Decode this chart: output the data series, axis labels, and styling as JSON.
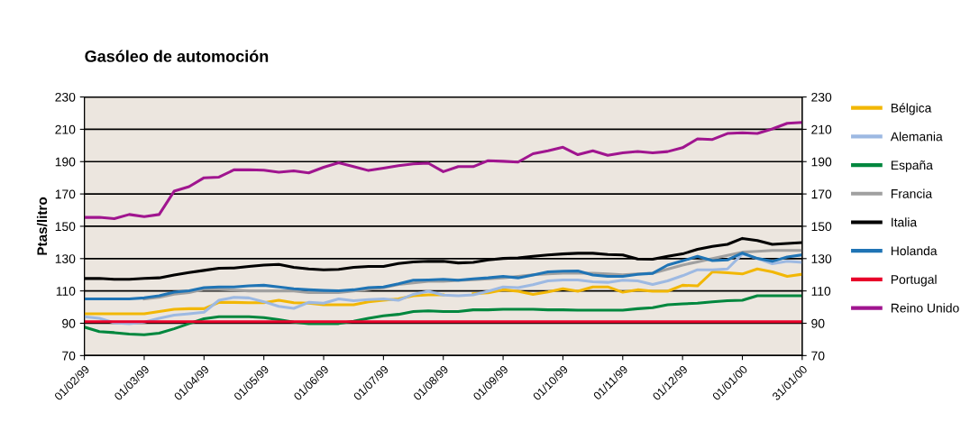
{
  "chart_data": {
    "type": "line",
    "title": "Gasóleo de automoción",
    "ylabel": "Ptas/litro",
    "categories": [
      "01/02/99",
      null,
      null,
      null,
      "01/03/99",
      null,
      null,
      null,
      "01/04/99",
      null,
      null,
      null,
      "01/05/99",
      null,
      null,
      null,
      "01/06/99",
      null,
      null,
      null,
      "01/07/99",
      null,
      null,
      null,
      "01/08/99",
      null,
      null,
      null,
      "01/09/99",
      null,
      null,
      null,
      "01/10/99",
      null,
      null,
      null,
      "01/11/99",
      null,
      null,
      null,
      "01/12/99",
      null,
      null,
      null,
      "01/01/00",
      null,
      null,
      null,
      "31/01/00"
    ],
    "series": [
      {
        "name": "Bélgica",
        "color": "#f2b705",
        "values": [
          95.9,
          95.9,
          95.9,
          95.9,
          95.9,
          97.2,
          98.7,
          99,
          99,
          102.9,
          102.9,
          102.7,
          102.7,
          104.2,
          102.7,
          102.4,
          101.4,
          101.4,
          101.4,
          103.3,
          104.2,
          105.1,
          107,
          107.6,
          107.6,
          null,
          108.3,
          108.8,
          110.7,
          109.8,
          107.9,
          109.4,
          111.3,
          109.8,
          112.5,
          112.5,
          109.2,
          110.7,
          109.8,
          109.8,
          113.5,
          113.1,
          121.8,
          121.2,
          120.5,
          123.6,
          121.8,
          119,
          120.3
        ]
      },
      {
        "name": "Alemania",
        "color": "#9db9e2",
        "values": [
          94,
          93.1,
          90.3,
          89.8,
          90.7,
          93.1,
          95,
          95.9,
          96.8,
          104.2,
          106,
          105.7,
          103.3,
          100.5,
          99.2,
          102.9,
          102.4,
          105.1,
          103.9,
          104.6,
          105.1,
          104.2,
          107.9,
          109.8,
          107.4,
          107,
          107.6,
          109.8,
          112.5,
          112,
          113.8,
          116.2,
          116.8,
          116.8,
          115.7,
          115.3,
          116.6,
          116.2,
          114,
          116.2,
          119.4,
          123.1,
          123.1,
          123.6,
          132.9,
          130.1,
          126.8,
          128.3,
          127.7
        ]
      },
      {
        "name": "España",
        "color": "#00873e",
        "values": [
          87.6,
          84.8,
          84.2,
          83.3,
          82.9,
          83.9,
          86.6,
          89.8,
          92.8,
          94,
          94,
          94,
          93.5,
          92.2,
          90.7,
          89.8,
          89.8,
          89.8,
          91.3,
          93.1,
          94.6,
          95.5,
          97.2,
          97.7,
          97.2,
          97.2,
          98.3,
          98.3,
          98.7,
          98.7,
          98.7,
          98.3,
          98.3,
          98.1,
          98.1,
          98.1,
          98.1,
          99,
          99.6,
          101.4,
          102,
          102.4,
          103.3,
          103.9,
          104.2,
          107,
          107,
          107,
          107
        ]
      },
      {
        "name": "Francia",
        "color": "#a0a0a0",
        "values": [
          null,
          null,
          null,
          null,
          105,
          106,
          108,
          109,
          111,
          111,
          110.5,
          110,
          110,
          110,
          110,
          109,
          109,
          109,
          110,
          111,
          112,
          114,
          115,
          116,
          116,
          116.5,
          117,
          117.5,
          118,
          119,
          120,
          120.5,
          121,
          121,
          121,
          120.5,
          120,
          120.5,
          121,
          123.5,
          126,
          128,
          130,
          132,
          134,
          134.5,
          135,
          135,
          135
        ]
      },
      {
        "name": "Italia",
        "color": "#000000",
        "values": [
          117.7,
          117.7,
          117.2,
          117.2,
          117.7,
          118.1,
          119.9,
          121.4,
          122.7,
          124,
          124.2,
          125.1,
          126,
          126.4,
          124.6,
          123.6,
          123.1,
          123.3,
          124.6,
          125.1,
          125.1,
          127,
          127.9,
          128.3,
          128.3,
          127.3,
          127.7,
          129.2,
          130.1,
          130.5,
          131.4,
          132.3,
          132.9,
          133.3,
          133.3,
          132.5,
          132.3,
          129.7,
          129.6,
          131.4,
          132.9,
          135.7,
          137.5,
          138.8,
          142.5,
          141.2,
          138.8,
          139.4,
          139.9
        ]
      },
      {
        "name": "Holanda",
        "color": "#1f74b5",
        "values": [
          105.1,
          105.1,
          105.1,
          105.1,
          105.7,
          107,
          109.2,
          110.1,
          112,
          112.5,
          112.5,
          113.1,
          113.5,
          112.5,
          111.3,
          110.7,
          110.3,
          110.1,
          110.7,
          112,
          112.5,
          114.4,
          116.6,
          116.8,
          117.2,
          116.6,
          117.5,
          118.1,
          119,
          118.1,
          119.9,
          121.8,
          122.2,
          122.4,
          119.9,
          119,
          119,
          120.3,
          120.9,
          126,
          128.6,
          131.4,
          128.8,
          129.2,
          133.4,
          130.1,
          128.3,
          131,
          132.3
        ]
      },
      {
        "name": "Portugal",
        "color": "#e8002a",
        "values": [
          91,
          91,
          91,
          91,
          91,
          91,
          91,
          91,
          91,
          91,
          91,
          91,
          91,
          91,
          91,
          91,
          91,
          91,
          91,
          91,
          91,
          91,
          91,
          91,
          91,
          91,
          91,
          91,
          91,
          91,
          91,
          91,
          91,
          91,
          91,
          91,
          91,
          91,
          91,
          91,
          91,
          91,
          91,
          91,
          91,
          91,
          91,
          91,
          91
        ]
      },
      {
        "name": "Reino Unido",
        "color": "#a0158f",
        "values": [
          155.5,
          155.6,
          154.7,
          157.3,
          156,
          157.3,
          171.7,
          174.5,
          180,
          180.4,
          184.9,
          185,
          184.7,
          183.4,
          184.3,
          183,
          186.5,
          189.3,
          186.9,
          184.5,
          186,
          187.5,
          188.6,
          189,
          183.8,
          186.9,
          186.9,
          190.6,
          190.2,
          189.7,
          194.9,
          196.7,
          198.9,
          194.3,
          196.7,
          193.9,
          195.4,
          196.3,
          195.4,
          196.2,
          198.6,
          204.1,
          203.7,
          207.4,
          207.8,
          207.4,
          210.2,
          213.7,
          214.3
        ]
      }
    ],
    "ylim": [
      70,
      230
    ],
    "yticks": [
      70,
      90,
      110,
      130,
      150,
      170,
      190,
      210,
      230
    ],
    "y2lim": [
      70,
      230
    ],
    "y2ticks": [
      70,
      90,
      110,
      130,
      150,
      170,
      190,
      210,
      230
    ],
    "grid": "y",
    "legend": "right",
    "marker": "none",
    "line_style": "solid"
  }
}
